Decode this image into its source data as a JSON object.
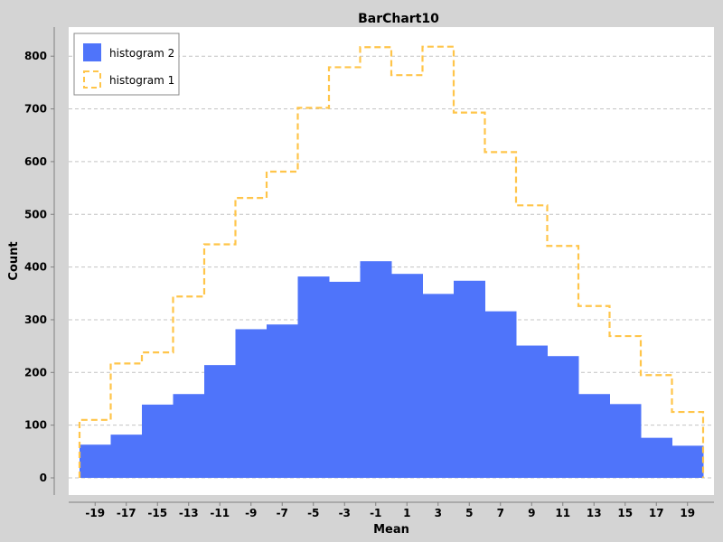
{
  "chart_data": {
    "type": "bar",
    "title": "BarChart10",
    "xlabel": "Mean",
    "ylabel": "Count",
    "xlim": [
      -20,
      20
    ],
    "ylim": [
      0,
      840
    ],
    "grid": true,
    "legend_position": "top-left",
    "bin_edges": [
      -20,
      -18,
      -16,
      -14,
      -12,
      -10,
      -8,
      -6,
      -4,
      -2,
      0,
      2,
      4,
      6,
      8,
      10,
      12,
      14,
      16,
      18,
      20
    ],
    "x_tick_labels": [
      "-19",
      "-17",
      "-15",
      "-13",
      "-11",
      "-9",
      "-7",
      "-5",
      "-3",
      "-1",
      "1",
      "3",
      "5",
      "7",
      "9",
      "11",
      "13",
      "15",
      "17",
      "19"
    ],
    "y_ticks": [
      0,
      100,
      200,
      300,
      400,
      500,
      600,
      700,
      800
    ],
    "series": [
      {
        "name": "histogram 2",
        "style": "filled",
        "color": "#4f74fa",
        "values": [
          63,
          82,
          139,
          159,
          214,
          282,
          291,
          382,
          372,
          411,
          387,
          349,
          374,
          316,
          251,
          231,
          159,
          140,
          76,
          61
        ]
      },
      {
        "name": "histogram 1",
        "style": "dashed-step",
        "color": "#ffc54a",
        "values": [
          110,
          217,
          238,
          344,
          443,
          531,
          581,
          702,
          779,
          817,
          764,
          818,
          693,
          618,
          517,
          440,
          326,
          269,
          195,
          125
        ]
      }
    ]
  }
}
